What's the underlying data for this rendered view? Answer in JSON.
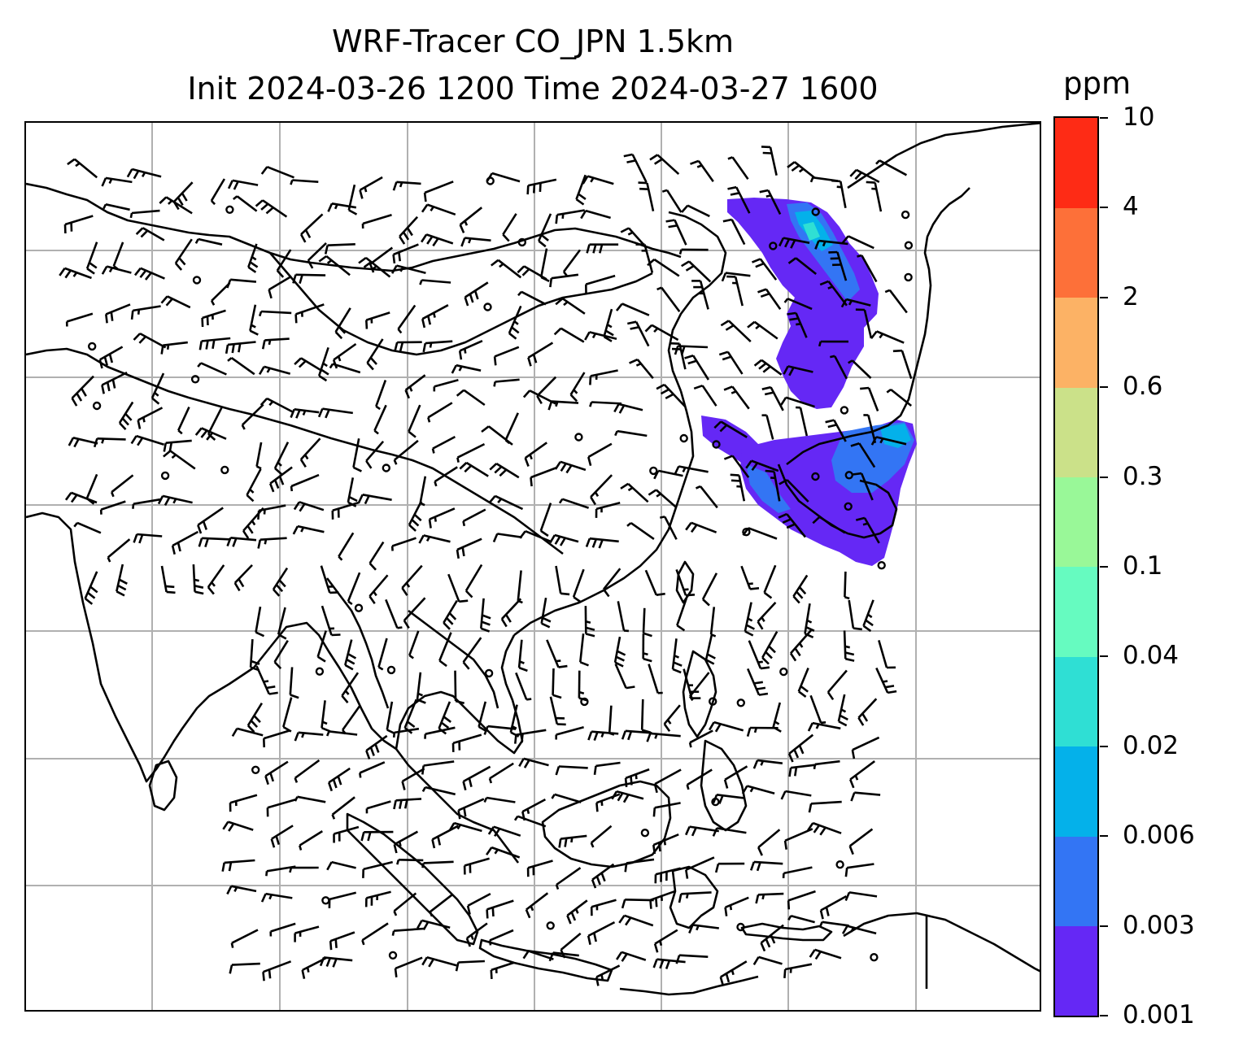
{
  "title": {
    "line1": "WRF-Tracer CO_JPN 1.5km",
    "line2": "Init 2024-03-26 1200 Time 2024-03-27 1600"
  },
  "colorbar": {
    "units": "ppm",
    "ticks": [
      "0.001",
      "0.003",
      "0.006",
      "0.02",
      "0.04",
      "0.1",
      "0.3",
      "0.6",
      "2",
      "4",
      "10"
    ],
    "colors": [
      "#6528f5",
      "#3375f4",
      "#04b1ea",
      "#2fdfd4",
      "#66fbc0",
      "#99f898",
      "#cbe189",
      "#fcb265",
      "#fd7039",
      "#fe2b15"
    ]
  },
  "map": {
    "coastline_color": "#000000",
    "gridline_color": "#b0b0b0",
    "grid": true,
    "layers": [
      "coastlines",
      "country borders",
      "CO tracer concentration (filled)",
      "wind barbs",
      "calm wind circles"
    ]
  }
}
